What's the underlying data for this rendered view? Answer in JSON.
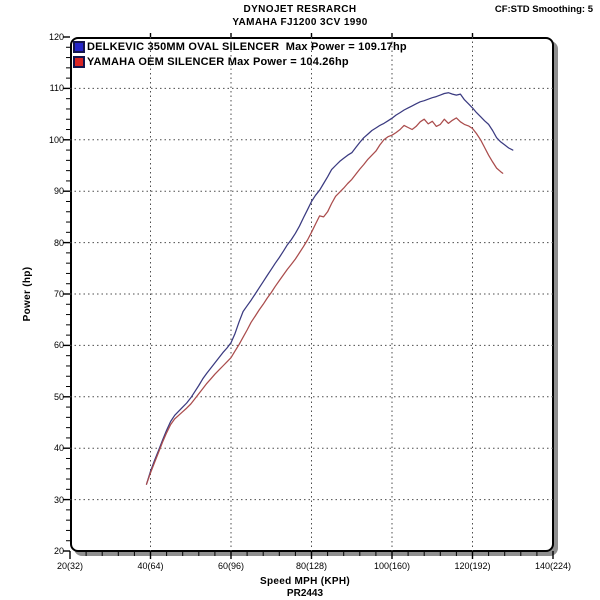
{
  "header": {
    "title_line1": "DYNOJET RESRARCH",
    "title_line2": "YAMAHA FJ1200 3CV 1990",
    "smoothing": "CF:STD Smoothing: 5"
  },
  "colors": {
    "delkevic_curve": "#3a3a80",
    "oem_curve": "#aa4c4c",
    "delkevic_swatch": "#2424c8",
    "oem_swatch": "#d82424",
    "grid": "#4d4d4d",
    "frame_shadow": "#8f8f8f"
  },
  "chart_data": {
    "type": "line",
    "title": "DYNOJET RESRARCH",
    "subtitle": "YAMAHA FJ1200 3CV 1990",
    "xlabel": "Speed MPH (KPH)",
    "ylabel": "Power (hp)",
    "footnote": "PR2443",
    "grid": "dotted, both axes at major ticks",
    "legend_position": "inside top-left",
    "xlim": [
      20,
      140
    ],
    "ylim": [
      20,
      120
    ],
    "x_major_ticks": [
      20,
      40,
      60,
      80,
      100,
      120,
      140
    ],
    "x_tick_labels": [
      "20(32)",
      "40(64)",
      "60(96)",
      "80(128)",
      "100(160)",
      "120(192)",
      "140(224)"
    ],
    "x_minor_step": 4,
    "y_major_ticks": [
      20,
      30,
      40,
      50,
      60,
      70,
      80,
      90,
      100,
      110,
      120
    ],
    "y_tick_labels": [
      "20",
      "30",
      "40",
      "50",
      "60",
      "70",
      "80",
      "90",
      "100",
      "110",
      "120"
    ],
    "y_minor_step": 2,
    "series": [
      {
        "name": "DELKEVIC 350MM OVAL SILENCER  Max Power = 109.17hp",
        "max_power_hp": 109.17,
        "color": "#3a3a80",
        "swatch_color": "#2424c8",
        "points": [
          [
            39,
            33
          ],
          [
            40,
            35.5
          ],
          [
            41,
            37.6
          ],
          [
            42,
            39.6
          ],
          [
            43,
            41.6
          ],
          [
            44,
            43.5
          ],
          [
            45,
            45.2
          ],
          [
            46,
            46.4
          ],
          [
            47,
            47.2
          ],
          [
            48,
            48
          ],
          [
            49,
            48.8
          ],
          [
            50,
            49.8
          ],
          [
            51,
            51
          ],
          [
            52,
            52.2
          ],
          [
            53,
            53.5
          ],
          [
            54,
            54.6
          ],
          [
            55,
            55.6
          ],
          [
            56,
            56.6
          ],
          [
            57,
            57.6
          ],
          [
            58,
            58.6
          ],
          [
            59,
            59.5
          ],
          [
            60,
            60.5
          ],
          [
            61,
            62.3
          ],
          [
            62,
            64.6
          ],
          [
            63,
            66.6
          ],
          [
            64,
            67.7
          ],
          [
            65,
            68.8
          ],
          [
            66,
            70
          ],
          [
            67,
            71.2
          ],
          [
            68,
            72.4
          ],
          [
            69,
            73.6
          ],
          [
            70,
            74.8
          ],
          [
            71,
            76
          ],
          [
            72,
            77.1
          ],
          [
            73,
            78.3
          ],
          [
            74,
            79.6
          ],
          [
            75,
            80.6
          ],
          [
            76,
            81.8
          ],
          [
            77,
            83.2
          ],
          [
            78,
            84.8
          ],
          [
            79,
            86.4
          ],
          [
            80,
            88
          ],
          [
            81,
            89.2
          ],
          [
            82,
            90.2
          ],
          [
            83,
            91.5
          ],
          [
            84,
            92.8
          ],
          [
            85,
            94.2
          ],
          [
            86,
            95
          ],
          [
            87,
            95.8
          ],
          [
            88,
            96.4
          ],
          [
            89,
            97
          ],
          [
            90,
            97.5
          ],
          [
            91,
            98.5
          ],
          [
            92,
            99.5
          ],
          [
            93,
            100.4
          ],
          [
            94,
            101.1
          ],
          [
            95,
            101.8
          ],
          [
            96,
            102.3
          ],
          [
            97,
            102.8
          ],
          [
            98,
            103.2
          ],
          [
            99,
            103.7
          ],
          [
            100,
            104.2
          ],
          [
            101,
            104.8
          ],
          [
            102,
            105.3
          ],
          [
            103,
            105.8
          ],
          [
            104,
            106.2
          ],
          [
            105,
            106.6
          ],
          [
            106,
            107
          ],
          [
            107,
            107.4
          ],
          [
            108,
            107.6
          ],
          [
            109,
            107.9
          ],
          [
            110,
            108.2
          ],
          [
            111,
            108.4
          ],
          [
            112,
            108.7
          ],
          [
            113,
            109
          ],
          [
            114,
            109.17
          ],
          [
            115,
            108.9
          ],
          [
            116,
            108.7
          ],
          [
            117,
            108.9
          ],
          [
            118,
            107.8
          ],
          [
            119,
            107
          ],
          [
            120,
            106.2
          ],
          [
            121,
            105.3
          ],
          [
            122,
            104.5
          ],
          [
            123,
            103.7
          ],
          [
            124,
            103
          ],
          [
            125,
            101.8
          ],
          [
            126,
            100.4
          ],
          [
            127,
            99.6
          ],
          [
            128,
            99
          ],
          [
            129,
            98.4
          ],
          [
            130,
            98
          ]
        ]
      },
      {
        "name": "YAMAHA OEM SILENCER Max Power = 104.26hp",
        "max_power_hp": 104.26,
        "color": "#aa4c4c",
        "swatch_color": "#d82424",
        "points": [
          [
            39,
            33
          ],
          [
            40,
            35.2
          ],
          [
            41,
            37.2
          ],
          [
            42,
            39.2
          ],
          [
            43,
            41.2
          ],
          [
            44,
            43
          ],
          [
            45,
            44.6
          ],
          [
            46,
            45.7
          ],
          [
            47,
            46.4
          ],
          [
            48,
            47.1
          ],
          [
            49,
            47.8
          ],
          [
            50,
            48.6
          ],
          [
            51,
            49.6
          ],
          [
            52,
            50.6
          ],
          [
            53,
            51.6
          ],
          [
            54,
            52.6
          ],
          [
            55,
            53.5
          ],
          [
            56,
            54.4
          ],
          [
            57,
            55.2
          ],
          [
            58,
            56
          ],
          [
            59,
            56.8
          ],
          [
            60,
            57.6
          ],
          [
            61,
            58.9
          ],
          [
            62,
            60.2
          ],
          [
            63,
            61.6
          ],
          [
            64,
            63
          ],
          [
            65,
            64.5
          ],
          [
            66,
            65.7
          ],
          [
            67,
            66.9
          ],
          [
            68,
            68
          ],
          [
            69,
            69.2
          ],
          [
            70,
            70.3
          ],
          [
            71,
            71.5
          ],
          [
            72,
            72.6
          ],
          [
            73,
            73.7
          ],
          [
            74,
            74.8
          ],
          [
            75,
            75.8
          ],
          [
            76,
            76.8
          ],
          [
            77,
            78
          ],
          [
            78,
            79.2
          ],
          [
            79,
            80.5
          ],
          [
            80,
            82
          ],
          [
            81,
            83.6
          ],
          [
            82,
            85.2
          ],
          [
            83,
            85
          ],
          [
            84,
            86
          ],
          [
            85,
            87.6
          ],
          [
            86,
            89
          ],
          [
            87,
            89.8
          ],
          [
            88,
            90.6
          ],
          [
            89,
            91.5
          ],
          [
            90,
            92.3
          ],
          [
            91,
            93.3
          ],
          [
            92,
            94.3
          ],
          [
            93,
            95.2
          ],
          [
            94,
            96.2
          ],
          [
            95,
            97
          ],
          [
            96,
            97.8
          ],
          [
            97,
            99
          ],
          [
            98,
            100
          ],
          [
            99,
            100.6
          ],
          [
            100,
            100.9
          ],
          [
            101,
            101.4
          ],
          [
            102,
            102
          ],
          [
            103,
            102.8
          ],
          [
            104,
            102.4
          ],
          [
            105,
            102
          ],
          [
            106,
            102.6
          ],
          [
            107,
            103.5
          ],
          [
            108,
            104
          ],
          [
            109,
            103.1
          ],
          [
            110,
            103.6
          ],
          [
            111,
            102.6
          ],
          [
            112,
            103
          ],
          [
            113,
            104
          ],
          [
            114,
            103.2
          ],
          [
            115,
            103.8
          ],
          [
            116,
            104.26
          ],
          [
            117,
            103.5
          ],
          [
            118,
            103
          ],
          [
            119,
            102.7
          ],
          [
            120,
            102.2
          ],
          [
            121,
            101.2
          ],
          [
            122,
            100
          ],
          [
            123,
            98.5
          ],
          [
            124,
            97
          ],
          [
            125,
            95.7
          ],
          [
            126,
            94.5
          ],
          [
            127,
            93.8
          ],
          [
            127.5,
            93.5
          ]
        ]
      }
    ]
  }
}
